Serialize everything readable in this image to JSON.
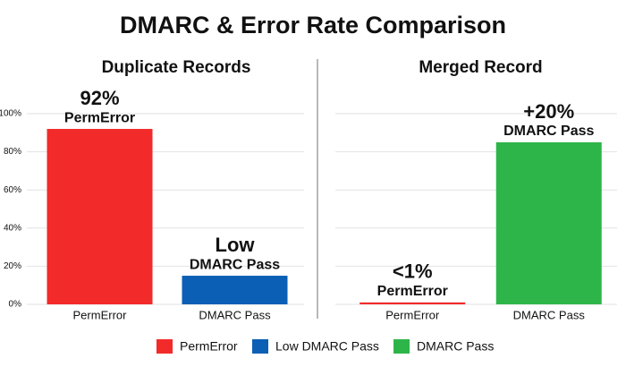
{
  "title": "DMARC & Error Rate Comparison",
  "chart_data": [
    {
      "type": "bar",
      "title": "Duplicate Records",
      "categories": [
        "PermError",
        "DMARC Pass"
      ],
      "values": [
        92,
        15
      ],
      "colors": [
        "#f22a2a",
        "#0b5fb5"
      ],
      "bar_labels": [
        [
          "92%",
          "PermError"
        ],
        [
          "Low",
          "DMARC Pass"
        ]
      ],
      "ylim": [
        0,
        100
      ],
      "yticks": [
        {
          "value": 0,
          "label": "0%"
        },
        {
          "value": 20,
          "label": "20%"
        },
        {
          "value": 40,
          "label": "40%"
        },
        {
          "value": 60,
          "label": "60%"
        },
        {
          "value": 80,
          "label": "80%"
        },
        {
          "value": 100,
          "label": "100%"
        }
      ],
      "show_tick_labels": true,
      "grid": true
    },
    {
      "type": "bar",
      "title": "Merged Record",
      "categories": [
        "PermError",
        "DMARC Pass"
      ],
      "values": [
        1,
        85
      ],
      "colors": [
        "#f22a2a",
        "#2db54a"
      ],
      "bar_labels": [
        [
          "<1%",
          "PermError"
        ],
        [
          "+20%",
          "DMARC Pass"
        ]
      ],
      "ylim": [
        0,
        100
      ],
      "yticks": [
        0,
        20,
        40,
        60,
        80,
        100
      ],
      "show_tick_labels": false,
      "grid": true
    }
  ],
  "legend": [
    {
      "name": "PermError",
      "color": "#f22a2a"
    },
    {
      "name": "Low DMARC Pass",
      "color": "#0b5fb5"
    },
    {
      "name": "DMARC Pass",
      "color": "#2db54a"
    }
  ]
}
